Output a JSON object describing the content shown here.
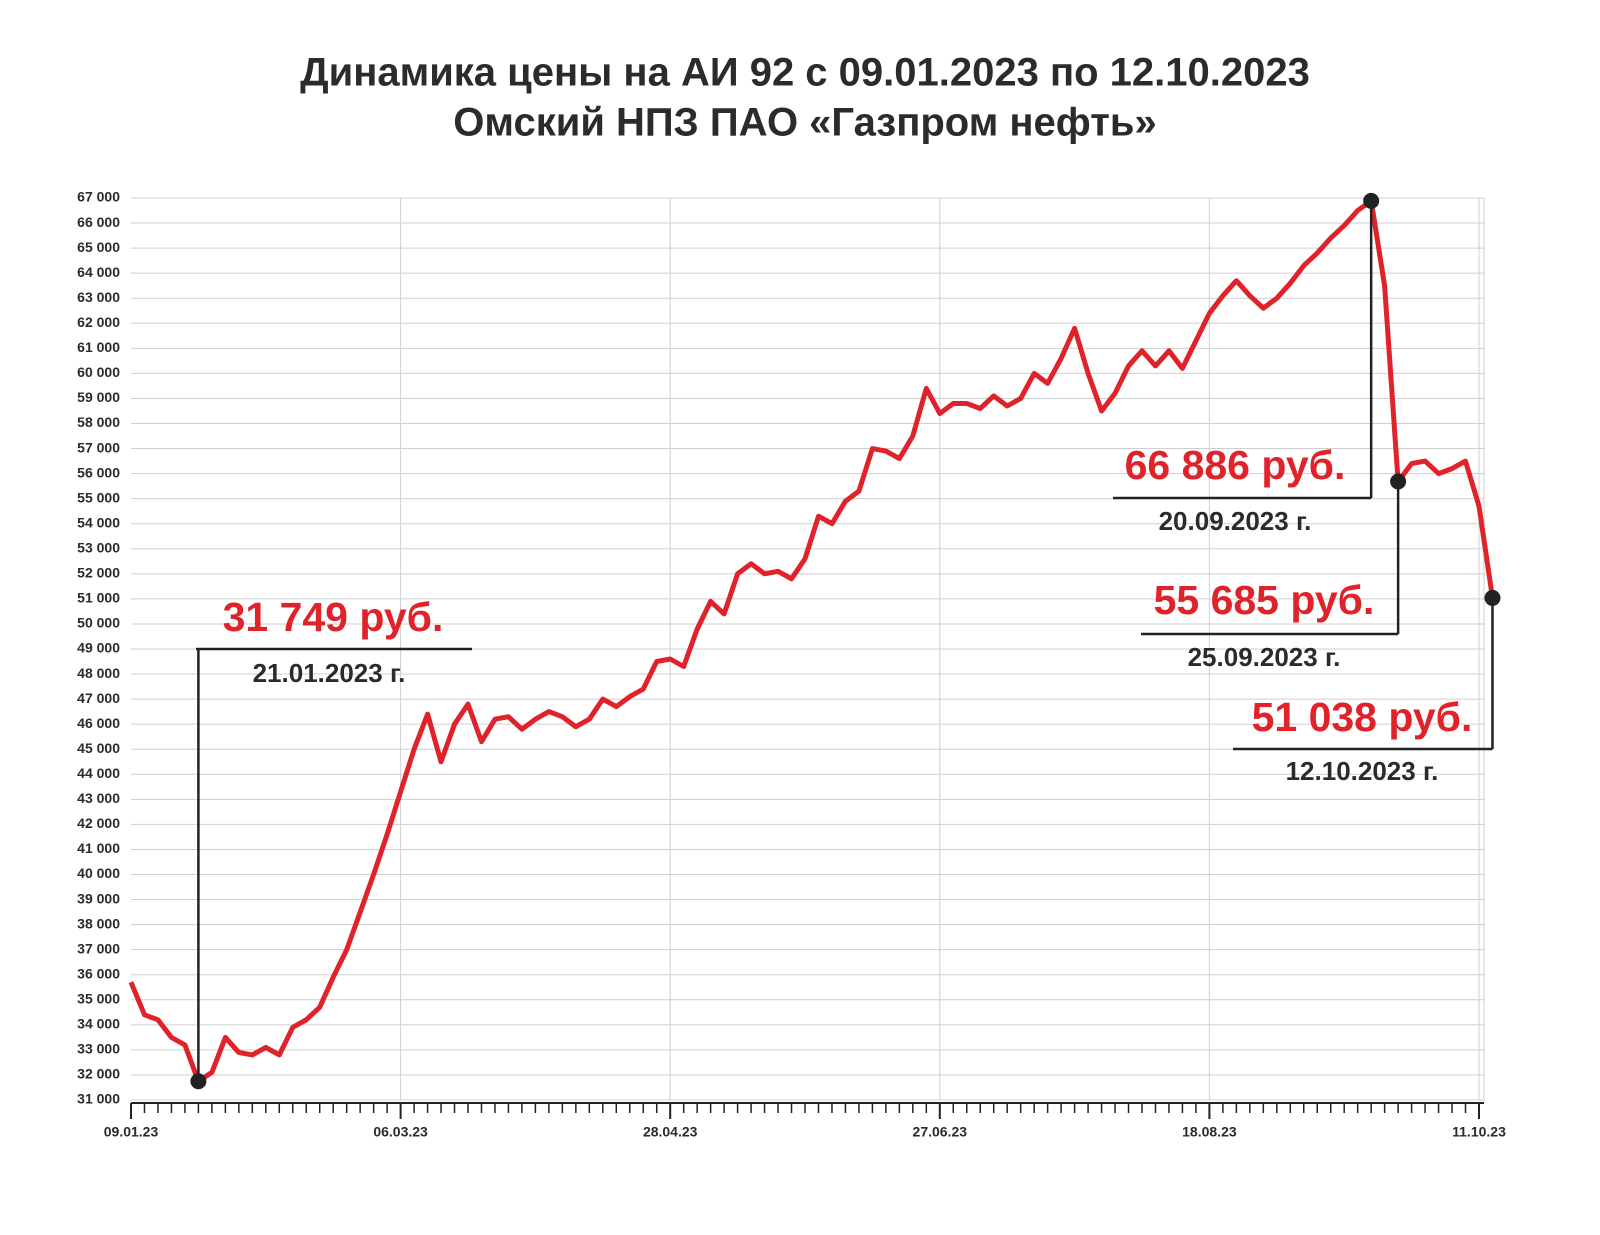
{
  "chart_data": {
    "type": "line",
    "title": [
      "Динамика цены на АИ 92 с 09.01.2023 по 12.10.2023",
      "Омский НПЗ ПАО «Газпром нефть»"
    ],
    "categories": [
      "09.01.23",
      null,
      null,
      null,
      null,
      null,
      null,
      null,
      null,
      null,
      null,
      null,
      null,
      null,
      null,
      null,
      null,
      null,
      null,
      null,
      "06.03.23",
      null,
      null,
      null,
      null,
      null,
      null,
      null,
      null,
      null,
      null,
      null,
      null,
      null,
      null,
      null,
      null,
      null,
      null,
      null,
      "28.04.23",
      null,
      null,
      null,
      null,
      null,
      null,
      null,
      null,
      null,
      null,
      null,
      null,
      null,
      null,
      null,
      null,
      null,
      null,
      null,
      "27.06.23",
      null,
      null,
      null,
      null,
      null,
      null,
      null,
      null,
      null,
      null,
      null,
      null,
      null,
      null,
      null,
      null,
      null,
      null,
      null,
      "18.08.23",
      null,
      null,
      null,
      null,
      null,
      null,
      null,
      null,
      null,
      null,
      null,
      null,
      null,
      null,
      null,
      null,
      null,
      null,
      null,
      "11.10.23",
      null
    ],
    "series": [
      {
        "name": "АИ 92",
        "color": "#e0232a",
        "values": [
          35700,
          34400,
          34200,
          33500,
          33200,
          31749,
          32100,
          33500,
          32900,
          32800,
          33100,
          32800,
          33900,
          34200,
          34700,
          35900,
          37000,
          38500,
          40000,
          41600,
          43300,
          45000,
          46400,
          44500,
          46000,
          46800,
          45300,
          46200,
          46300,
          45800,
          46200,
          46500,
          46300,
          45900,
          46200,
          47000,
          46700,
          47100,
          47400,
          48500,
          48600,
          48300,
          49800,
          50900,
          50400,
          52000,
          52400,
          52000,
          52100,
          51800,
          52600,
          54300,
          54000,
          54900,
          55300,
          57000,
          56900,
          56600,
          57500,
          59400,
          58400,
          58800,
          58800,
          58600,
          59100,
          58700,
          59000,
          60000,
          59600,
          60600,
          61800,
          60000,
          58500,
          59200,
          60300,
          60900,
          60300,
          60900,
          60200,
          61300,
          62400,
          63100,
          63700,
          63100,
          62600,
          63000,
          63600,
          64300,
          64800,
          65400,
          65900,
          66500,
          66886,
          63500,
          55685,
          56400,
          56500,
          56000,
          56200,
          56500,
          54700,
          51038
        ]
      }
    ],
    "annotations": [
      {
        "value": 31749,
        "label": "31 749 руб.",
        "date": "21.01.2023 г."
      },
      {
        "value": 66886,
        "label": "66 886 руб.",
        "date": "20.09.2023 г."
      },
      {
        "value": 55685,
        "label": "55 685 руб.",
        "date": "25.09.2023 г."
      },
      {
        "value": 51038,
        "label": "51 038 руб.",
        "date": "12.10.2023 г."
      }
    ],
    "ylim": [
      31000,
      67000
    ],
    "yticks": [
      {
        "value": 31000,
        "label": "31 000"
      },
      {
        "value": 32000,
        "label": "32 000"
      },
      {
        "value": 33000,
        "label": "33 000"
      },
      {
        "value": 34000,
        "label": "34 000"
      },
      {
        "value": 35000,
        "label": "35 000"
      },
      {
        "value": 36000,
        "label": "36 000"
      },
      {
        "value": 37000,
        "label": "37 000"
      },
      {
        "value": 38000,
        "label": "38 000"
      },
      {
        "value": 39000,
        "label": "39 000"
      },
      {
        "value": 40000,
        "label": "40 000"
      },
      {
        "value": 41000,
        "label": "41 000"
      },
      {
        "value": 42000,
        "label": "42 000"
      },
      {
        "value": 43000,
        "label": "43 000"
      },
      {
        "value": 44000,
        "label": "44 000"
      },
      {
        "value": 45000,
        "label": "45 000"
      },
      {
        "value": 46000,
        "label": "46 000"
      },
      {
        "value": 47000,
        "label": "47 000"
      },
      {
        "value": 48000,
        "label": "48 000"
      },
      {
        "value": 49000,
        "label": "49 000"
      },
      {
        "value": 50000,
        "label": "50 000"
      },
      {
        "value": 51000,
        "label": "51 000"
      },
      {
        "value": 52000,
        "label": "52 000"
      },
      {
        "value": 53000,
        "label": "53 000"
      },
      {
        "value": 54000,
        "label": "54 000"
      },
      {
        "value": 55000,
        "label": "55 000"
      },
      {
        "value": 56000,
        "label": "56 000"
      },
      {
        "value": 57000,
        "label": "57 000"
      },
      {
        "value": 58000,
        "label": "58 000"
      },
      {
        "value": 59000,
        "label": "59 000"
      },
      {
        "value": 60000,
        "label": "60 000"
      },
      {
        "value": 61000,
        "label": "61 000"
      },
      {
        "value": 62000,
        "label": "62 000"
      },
      {
        "value": 63000,
        "label": "63 000"
      },
      {
        "value": 64000,
        "label": "64 000"
      },
      {
        "value": 65000,
        "label": "65 000"
      },
      {
        "value": 66000,
        "label": "66 000"
      },
      {
        "value": 67000,
        "label": "67 000"
      }
    ],
    "grid": true
  }
}
